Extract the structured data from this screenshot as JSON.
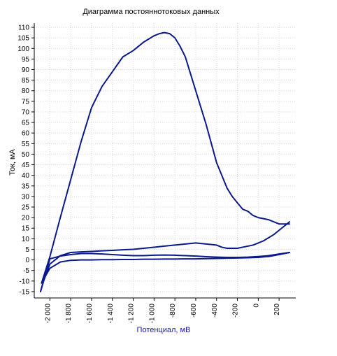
{
  "chart_data": {
    "type": "line",
    "title": "Диаграмма постояннотоковых данных",
    "xlabel": "Потенциал, мВ",
    "ylabel": "Ток, мА",
    "xlim": [
      -2150,
      360
    ],
    "ylim": [
      -18,
      112
    ],
    "x_ticks": [
      -2000,
      -1800,
      -1600,
      -1400,
      -1200,
      -1000,
      -800,
      -600,
      -400,
      -200,
      0,
      200
    ],
    "x_tick_labels": [
      "-2 000",
      "-1 800",
      "-1 600",
      "-1 400",
      "-1 200",
      "-1 000",
      "-800",
      "-600",
      "-400",
      "-200",
      "0",
      "200"
    ],
    "y_ticks": [
      -15,
      -10,
      -5,
      0,
      5,
      10,
      15,
      20,
      25,
      30,
      35,
      40,
      45,
      50,
      55,
      60,
      65,
      70,
      75,
      80,
      85,
      90,
      95,
      100,
      105,
      110
    ],
    "y_tick_labels": [
      "-15",
      "-10",
      "-5",
      "0",
      "5",
      "10",
      "15",
      "20",
      "25",
      "30",
      "35",
      "40",
      "45",
      "50",
      "55",
      "60",
      "65",
      "70",
      "75",
      "80",
      "85",
      "90",
      "95",
      "100",
      "105",
      "110"
    ],
    "grid": true,
    "series": [
      {
        "color": "#0a1a8c",
        "points": [
          [
            -2080,
            -11
          ],
          [
            -2000,
            1.5
          ],
          [
            -1900,
            20
          ],
          [
            -1800,
            38
          ],
          [
            -1700,
            56
          ],
          [
            -1600,
            72
          ],
          [
            -1500,
            82
          ],
          [
            -1400,
            89
          ],
          [
            -1300,
            96
          ],
          [
            -1200,
            99
          ],
          [
            -1100,
            103
          ],
          [
            -1000,
            106
          ],
          [
            -950,
            107
          ],
          [
            -900,
            107.5
          ],
          [
            -850,
            107
          ],
          [
            -800,
            105
          ],
          [
            -750,
            101
          ],
          [
            -700,
            96
          ],
          [
            -650,
            88
          ],
          [
            -600,
            80
          ],
          [
            -550,
            72
          ],
          [
            -500,
            64
          ],
          [
            -450,
            55
          ],
          [
            -400,
            46
          ],
          [
            -350,
            40
          ],
          [
            -300,
            34
          ],
          [
            -250,
            30
          ],
          [
            -200,
            27
          ],
          [
            -150,
            24
          ],
          [
            -100,
            23
          ],
          [
            -50,
            21
          ],
          [
            0,
            20
          ],
          [
            50,
            19.5
          ],
          [
            100,
            19
          ],
          [
            150,
            18
          ],
          [
            200,
            17
          ],
          [
            250,
            17
          ],
          [
            300,
            17
          ]
        ]
      },
      {
        "color": "#0a1a8c",
        "points": [
          [
            300,
            18
          ],
          [
            250,
            16
          ],
          [
            200,
            14
          ],
          [
            150,
            12
          ],
          [
            100,
            10.5
          ],
          [
            50,
            9
          ],
          [
            0,
            8
          ],
          [
            -50,
            7
          ],
          [
            -100,
            6.5
          ],
          [
            -150,
            6
          ],
          [
            -200,
            5.5
          ],
          [
            -250,
            5.5
          ],
          [
            -300,
            5.5
          ],
          [
            -350,
            6
          ],
          [
            -400,
            7
          ],
          [
            -500,
            7.5
          ],
          [
            -600,
            8
          ],
          [
            -700,
            7.5
          ],
          [
            -800,
            7
          ],
          [
            -900,
            6.5
          ],
          [
            -1000,
            6
          ],
          [
            -1100,
            5.5
          ],
          [
            -1200,
            5
          ],
          [
            -1300,
            4.8
          ],
          [
            -1400,
            4.5
          ],
          [
            -1500,
            4.3
          ],
          [
            -1600,
            4
          ],
          [
            -1700,
            3.8
          ],
          [
            -1800,
            3.5
          ],
          [
            -1900,
            2
          ],
          [
            -2000,
            -2
          ],
          [
            -2060,
            -10
          ],
          [
            -2090,
            -15
          ]
        ]
      },
      {
        "color": "#0a1a8c",
        "points": [
          [
            -2090,
            -15
          ],
          [
            -2000,
            0.5
          ],
          [
            -1900,
            1.8
          ],
          [
            -1800,
            2.5
          ],
          [
            -1700,
            3
          ],
          [
            -1600,
            3
          ],
          [
            -1500,
            2.8
          ],
          [
            -1400,
            2.5
          ],
          [
            -1300,
            2.2
          ],
          [
            -1200,
            2
          ],
          [
            -1100,
            2
          ],
          [
            -1000,
            2.2
          ],
          [
            -900,
            2.3
          ],
          [
            -800,
            2.2
          ],
          [
            -700,
            2
          ],
          [
            -600,
            1.8
          ],
          [
            -500,
            1.5
          ],
          [
            -400,
            1.3
          ],
          [
            -300,
            1.2
          ],
          [
            -200,
            1.2
          ],
          [
            -100,
            1.3
          ],
          [
            0,
            1.6
          ],
          [
            100,
            2
          ],
          [
            200,
            2.8
          ],
          [
            300,
            3.5
          ]
        ]
      },
      {
        "color": "#0a1a8c",
        "points": [
          [
            300,
            3.5
          ],
          [
            200,
            2.5
          ],
          [
            100,
            1.6
          ],
          [
            0,
            1.2
          ],
          [
            -100,
            1
          ],
          [
            -200,
            0.9
          ],
          [
            -300,
            0.8
          ],
          [
            -400,
            0.7
          ],
          [
            -500,
            0.6
          ],
          [
            -600,
            0.5
          ],
          [
            -700,
            0.5
          ],
          [
            -800,
            0.4
          ],
          [
            -900,
            0.4
          ],
          [
            -1000,
            0.3
          ],
          [
            -1100,
            0.3
          ],
          [
            -1200,
            0.2
          ],
          [
            -1300,
            0.2
          ],
          [
            -1400,
            0.1
          ],
          [
            -1500,
            0.1
          ],
          [
            -1600,
            0
          ],
          [
            -1700,
            0
          ],
          [
            -1800,
            -0.2
          ],
          [
            -1900,
            -1
          ],
          [
            -2000,
            -4
          ],
          [
            -2070,
            -10
          ]
        ]
      }
    ]
  }
}
